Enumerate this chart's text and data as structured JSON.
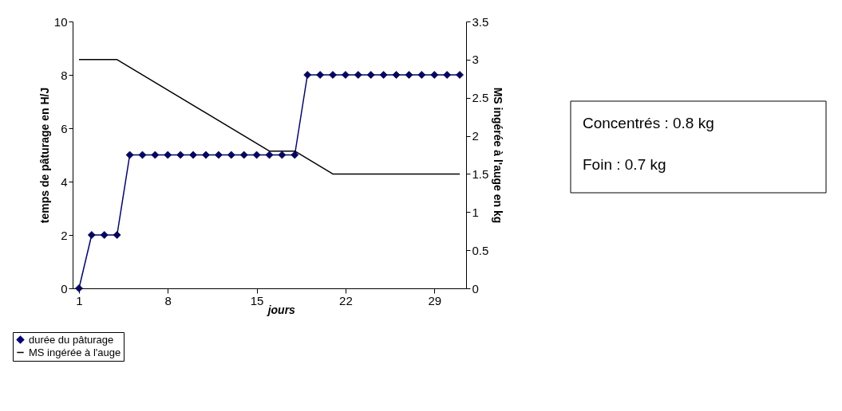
{
  "chart_data": {
    "type": "line",
    "x": [
      1,
      2,
      3,
      4,
      5,
      6,
      7,
      8,
      9,
      10,
      11,
      12,
      13,
      14,
      15,
      16,
      17,
      18,
      19,
      20,
      21,
      22,
      23,
      24,
      25,
      26,
      27,
      28,
      29,
      30,
      31
    ],
    "xlim": [
      0.5,
      31.5
    ],
    "xticks": [
      1,
      8,
      15,
      22,
      29
    ],
    "ylim": [
      0,
      10
    ],
    "yticks": [
      0,
      2,
      4,
      6,
      8,
      10
    ],
    "y2lim": [
      0,
      3.5
    ],
    "y2ticks": [
      0,
      0.5,
      1,
      1.5,
      2,
      2.5,
      3,
      3.5
    ],
    "xlabel": "jours",
    "ylabel": "temps de pâturage en H/J",
    "y2label": "MS ingérée à l'auge en kg",
    "series": [
      {
        "name": "durée du pâturage",
        "color": "#000080",
        "marker": "diamond",
        "values": [
          0,
          2,
          2,
          2,
          5,
          5,
          5,
          5,
          5,
          5,
          5,
          5,
          5,
          5,
          5,
          5,
          5,
          5,
          8,
          8,
          8,
          8,
          8,
          8,
          8,
          8,
          8,
          8,
          8,
          8,
          8
        ]
      },
      {
        "name": "MS ingérée à l'auge",
        "color": "#000000",
        "marker": "none",
        "axis": "y2",
        "x": [
          1,
          4,
          16,
          18,
          21,
          31
        ],
        "values": [
          3,
          3,
          1.8,
          1.8,
          1.5,
          1.5
        ]
      }
    ],
    "annotations": [
      "Concentrés : 0.8 kg",
      "Foin : 0.7 kg"
    ],
    "grid": false,
    "legend": "bottom left",
    "line_style": "solid"
  }
}
